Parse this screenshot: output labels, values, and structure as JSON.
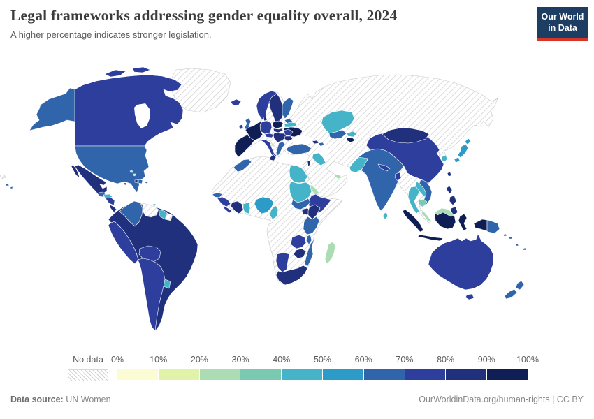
{
  "header": {
    "title": "Legal frameworks addressing gender equality overall, 2024",
    "subtitle": "A higher percentage indicates stronger legislation.",
    "logo": {
      "line1": "Our World",
      "line2": "in Data",
      "bg": "#1d3d63",
      "accent": "#d8352a"
    }
  },
  "legend": {
    "no_data_label": "No data",
    "tick_labels": [
      "0%",
      "10%",
      "20%",
      "30%",
      "40%",
      "50%",
      "60%",
      "70%",
      "80%",
      "90%",
      "100%"
    ],
    "bin_colors": [
      "#fbfcd4",
      "#e1f2a9",
      "#abdcb4",
      "#7cc9b1",
      "#45b4c8",
      "#2d9bc7",
      "#3065ab",
      "#2e3e9d",
      "#20307d",
      "#0f1e55"
    ]
  },
  "footer": {
    "source_label": "Data source:",
    "source_value": "UN Women",
    "link": "OurWorldinData.org/human-rights",
    "license": "CC BY"
  },
  "chart_data": {
    "type": "choropleth-map",
    "title": "Legal frameworks addressing gender equality overall, 2024",
    "subtitle": "A higher percentage indicates stronger legislation.",
    "unit": "%",
    "bins": [
      {
        "range": "0-10%",
        "color": "#fbfcd4"
      },
      {
        "range": "10-20%",
        "color": "#e1f2a9"
      },
      {
        "range": "20-30%",
        "color": "#abdcb4"
      },
      {
        "range": "30-40%",
        "color": "#7cc9b1"
      },
      {
        "range": "40-50%",
        "color": "#45b4c8"
      },
      {
        "range": "50-60%",
        "color": "#2d9bc7"
      },
      {
        "range": "60-70%",
        "color": "#3065ab"
      },
      {
        "range": "70-80%",
        "color": "#2e3e9d"
      },
      {
        "range": "80-90%",
        "color": "#20307d"
      },
      {
        "range": "90-100%",
        "color": "#0f1e55"
      }
    ],
    "no_data": {
      "label": "No data",
      "style": "gray diagonal hatch"
    },
    "countries": {
      "United States": "60-70",
      "Canada": "70-80",
      "Mexico": "80-90",
      "Greenland": "No data",
      "Guatemala": "60-70",
      "Honduras": "40-50",
      "Nicaragua": "70-80",
      "Costa Rica": "80-90",
      "Panama": "80-90",
      "Cuba": "No data",
      "Haiti": "80-90",
      "Dominican Republic": "60-70",
      "Jamaica": "80-90",
      "Bahamas": "20-30",
      "Trinidad and Tobago": "40-50",
      "Colombia": "60-70",
      "Venezuela": "No data",
      "Guyana": "40-50",
      "Suriname": "No data",
      "Ecuador": "80-90",
      "Peru": "70-80",
      "Brazil": "80-90",
      "Bolivia": "70-80",
      "Paraguay": "70-80",
      "Uruguay": "40-50",
      "Argentina": "70-80",
      "Chile": "70-80",
      "Iceland": "70-80",
      "Ireland": "70-80",
      "United Kingdom": "60-70",
      "Norway": "70-80",
      "Sweden": "80-90",
      "Finland": "60-70",
      "Denmark": "80-90",
      "Germany": "70-80",
      "France": "90-100",
      "Spain": "90-100",
      "Portugal": "90-100",
      "Italy": "70-80",
      "Poland": "90-100",
      "Czechia": "80-90",
      "Hungary": "80-90",
      "Romania": "70-80",
      "Bulgaria": "80-90",
      "Greece": "60-70",
      "Ukraine": "90-100",
      "Belarus": "40-50",
      "Turkey": "60-70",
      "Georgia": "80-90",
      "Azerbaijan": "60-70",
      "Russia": "No data",
      "Kazakhstan": "40-50",
      "Uzbekistan": "60-70",
      "Turkmenistan": "No data",
      "Kyrgyzstan": "40-50",
      "Tajikistan": "90-100",
      "Afghanistan": "No data",
      "Iran": "No data",
      "Iraq": "40-50",
      "Israel": "80-90",
      "Saudi Arabia": "No data",
      "Yemen": "No data",
      "United Arab Emirates": "20-30",
      "Pakistan": "40-50",
      "India": "60-70",
      "Nepal": "70-80",
      "Bangladesh": "70-80",
      "Sri Lanka": "40-50",
      "China": "70-80",
      "Mongolia": "80-90",
      "North Korea": "No data",
      "South Korea": "40-50",
      "Japan": "50-60",
      "Taiwan": "80-90",
      "Myanmar": "No data",
      "Thailand": "40-50",
      "Laos": "40-50",
      "Vietnam": "60-70",
      "Cambodia": "30-40",
      "Malaysia": "20-30",
      "Philippines": "80-90",
      "Indonesia": "90-100",
      "Papua New Guinea": "60-70",
      "Australia": "70-80",
      "New Zealand": "60-70",
      "Fiji": "60-70",
      "Solomon Islands": "60-70",
      "Morocco": "60-70",
      "Algeria": "No data",
      "Tunisia": "80-90",
      "Libya": "No data",
      "Egypt": "40-50",
      "Mauritania": "No data",
      "Mali": "No data",
      "Niger": "No data",
      "Chad": "No data",
      "Senegal": "60-70",
      "Guinea": "70-80",
      "Sierra Leone": "70-80",
      "Liberia": "70-80",
      "Cote d'Ivoire": "80-90",
      "Ghana": "40-50",
      "Nigeria": "50-60",
      "Cameroon": "40-50",
      "Sudan": "40-50",
      "South Sudan": "60-70",
      "Eritrea": "20-30",
      "Ethiopia": "70-80",
      "Somalia": "No data",
      "Kenya": "80-90",
      "Uganda": "80-90",
      "Tanzania": "60-70",
      "DR Congo": "No data",
      "Angola": "No data",
      "Zambia": "70-80",
      "Malawi": "60-70",
      "Mozambique": "60-70",
      "Zimbabwe": "80-90",
      "Botswana": "No data",
      "Namibia": "70-80",
      "South Africa": "80-90",
      "Madagascar": "20-30"
    },
    "legend_position": "bottom",
    "projection": "world"
  }
}
